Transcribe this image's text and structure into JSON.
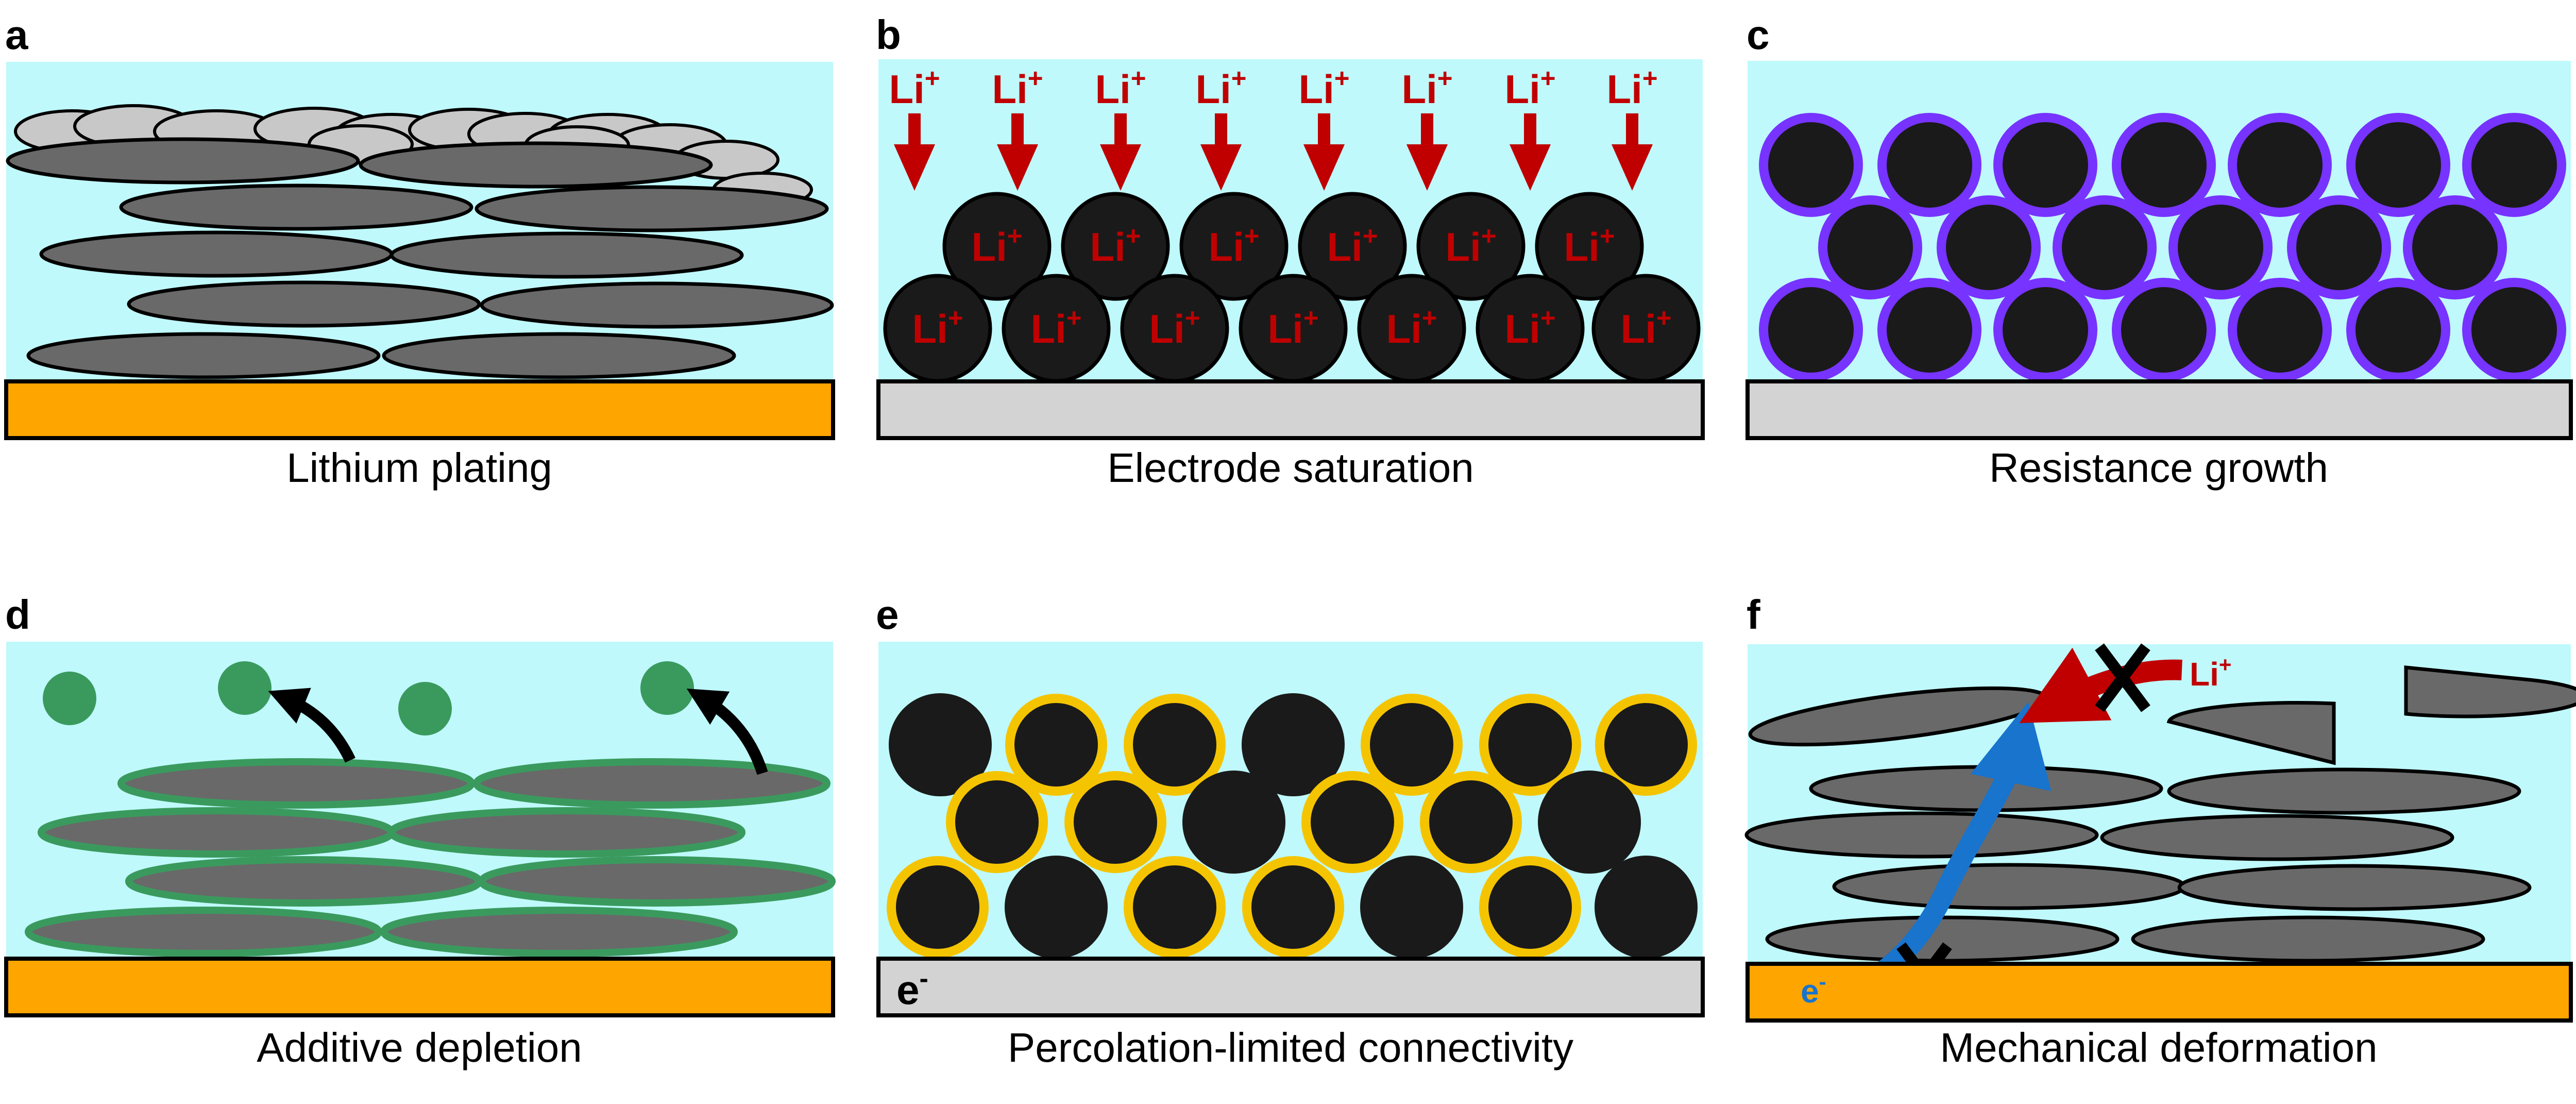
{
  "panels": [
    {
      "letter": "a",
      "caption": "Lithium plating"
    },
    {
      "letter": "b",
      "caption": "Electrode saturation"
    },
    {
      "letter": "c",
      "caption": "Resistance growth"
    },
    {
      "letter": "d",
      "caption": "Additive depletion"
    },
    {
      "letter": "e",
      "caption": "Percolation-limited connectivity"
    },
    {
      "letter": "f",
      "caption": "Mechanical deformation"
    }
  ],
  "labels": {
    "li_base": "Li",
    "li_sup": "+",
    "e_base": "e",
    "e_sup": "-"
  },
  "colors": {
    "electrolyte": "#bff9fb",
    "copper_current_collector": "#ffa500",
    "aluminium_current_collector": "#d3d3d3",
    "graphite": "#696969",
    "plated_lithium": "#c8c8c8",
    "active_particle": "#1a1a1a",
    "li_arrow": "#c00000",
    "resistive_layer": "#7733ff",
    "additive": "#3a9a5e",
    "conductive_coating": "#f5c400",
    "electron_path": "#1874cd"
  }
}
